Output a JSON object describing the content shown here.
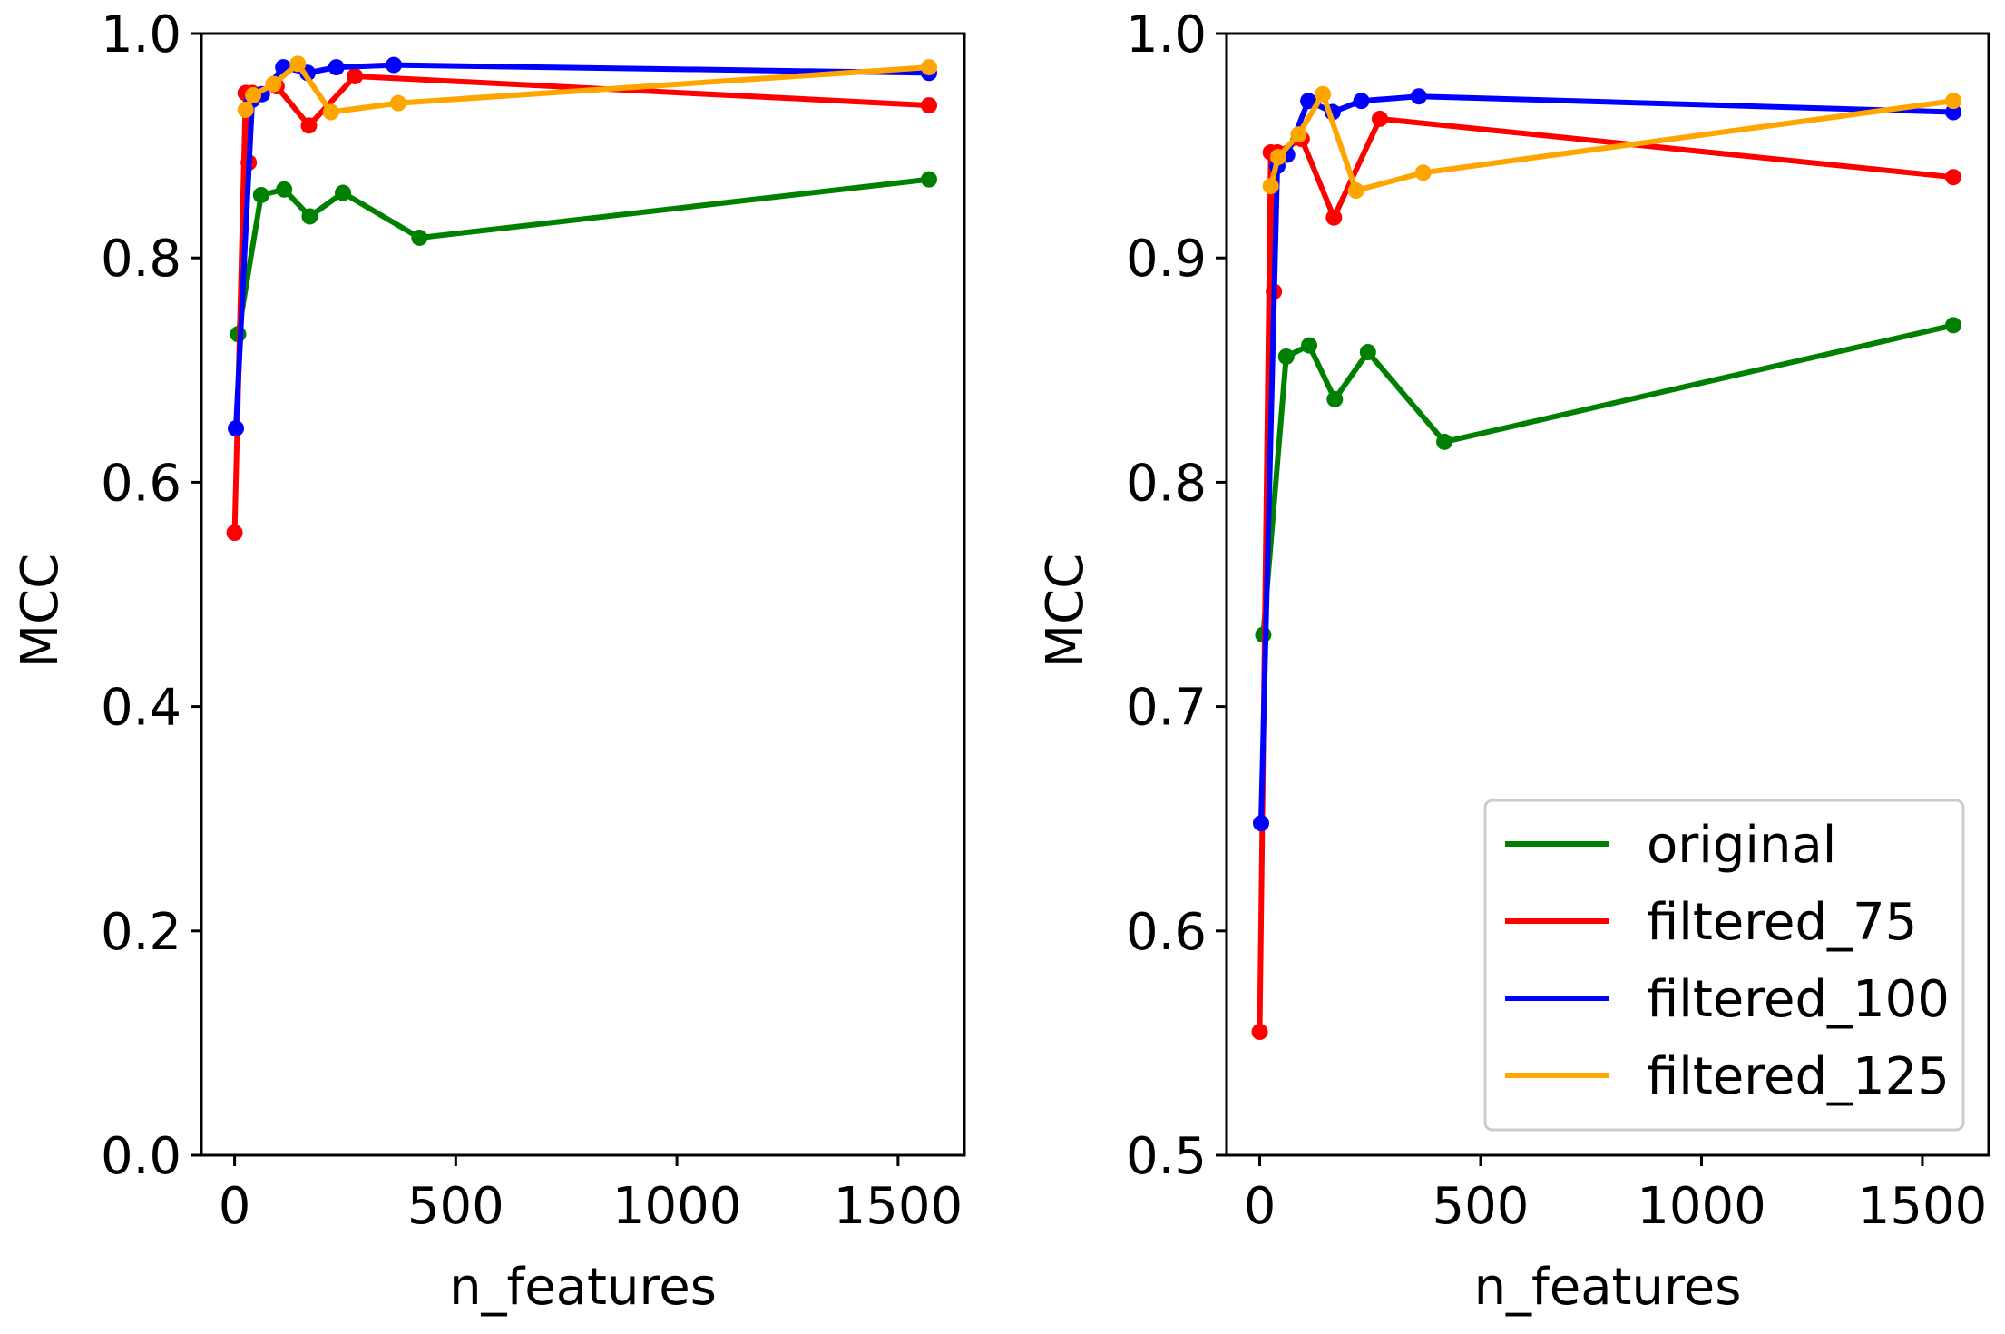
{
  "chart_data": [
    {
      "type": "line",
      "title": "",
      "xlabel": "n_features",
      "ylabel": "MCC",
      "xlim": [
        -75,
        1650
      ],
      "ylim": [
        0.0,
        1.0
      ],
      "xticks": [
        0,
        500,
        1000,
        1500
      ],
      "xtick_labels": [
        "0",
        "500",
        "1000",
        "1500"
      ],
      "yticks": [
        0.0,
        0.2,
        0.4,
        0.6,
        0.8,
        1.0
      ],
      "ytick_labels": [
        "0.0",
        "0.2",
        "0.4",
        "0.6",
        "0.8",
        "1.0"
      ],
      "grid": false,
      "legend": null,
      "series": [
        {
          "name": "original",
          "color": "#008000",
          "x": [
            8,
            60,
            112,
            170,
            245,
            418,
            1570
          ],
          "y": [
            0.732,
            0.856,
            0.861,
            0.837,
            0.858,
            0.818,
            0.87
          ]
        },
        {
          "name": "filtered_75",
          "color": "#ff0000",
          "x": [
            0,
            25,
            32,
            40,
            95,
            168,
            272,
            1570
          ],
          "y": [
            0.555,
            0.947,
            0.885,
            0.947,
            0.953,
            0.918,
            0.962,
            0.936
          ]
        },
        {
          "name": "filtered_100",
          "color": "#0000ff",
          "x": [
            3,
            40,
            62,
            110,
            165,
            230,
            360,
            1570
          ],
          "y": [
            0.648,
            0.941,
            0.946,
            0.97,
            0.965,
            0.97,
            0.972,
            0.965
          ]
        },
        {
          "name": "filtered_125",
          "color": "#ffa500",
          "x": [
            25,
            42,
            88,
            143,
            218,
            370,
            1570
          ],
          "y": [
            0.932,
            0.945,
            0.955,
            0.973,
            0.93,
            0.938,
            0.97
          ]
        }
      ]
    },
    {
      "type": "line",
      "title": "",
      "xlabel": "n_features",
      "ylabel": "MCC",
      "xlim": [
        -75,
        1650
      ],
      "ylim": [
        0.5,
        1.0
      ],
      "xticks": [
        0,
        500,
        1000,
        1500
      ],
      "xtick_labels": [
        "0",
        "500",
        "1000",
        "1500"
      ],
      "yticks": [
        0.5,
        0.6,
        0.7,
        0.8,
        0.9,
        1.0
      ],
      "ytick_labels": [
        "0.5",
        "0.6",
        "0.7",
        "0.8",
        "0.9",
        "1.0"
      ],
      "grid": false,
      "legend": "lower-right",
      "series": [
        {
          "name": "original",
          "color": "#008000",
          "x": [
            8,
            60,
            112,
            170,
            245,
            418,
            1570
          ],
          "y": [
            0.732,
            0.856,
            0.861,
            0.837,
            0.858,
            0.818,
            0.87
          ]
        },
        {
          "name": "filtered_75",
          "color": "#ff0000",
          "x": [
            0,
            25,
            32,
            40,
            95,
            168,
            272,
            1570
          ],
          "y": [
            0.555,
            0.947,
            0.885,
            0.947,
            0.953,
            0.918,
            0.962,
            0.936
          ]
        },
        {
          "name": "filtered_100",
          "color": "#0000ff",
          "x": [
            3,
            40,
            62,
            110,
            165,
            230,
            360,
            1570
          ],
          "y": [
            0.648,
            0.941,
            0.946,
            0.97,
            0.965,
            0.97,
            0.972,
            0.965
          ]
        },
        {
          "name": "filtered_125",
          "color": "#ffa500",
          "x": [
            25,
            42,
            88,
            143,
            218,
            370,
            1570
          ],
          "y": [
            0.932,
            0.945,
            0.955,
            0.973,
            0.93,
            0.938,
            0.97
          ]
        }
      ]
    }
  ]
}
